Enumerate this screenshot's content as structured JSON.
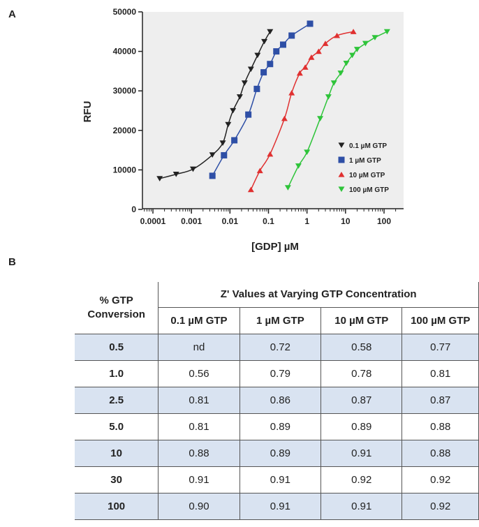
{
  "panels": {
    "a": "A",
    "b": "B"
  },
  "chart_data": {
    "type": "scatter",
    "xlabel": "[GDP] µM",
    "ylabel": "RFU",
    "x_scale": "log",
    "xlim": [
      0.0001,
      200
    ],
    "ylim": [
      0,
      50000
    ],
    "x_ticks": [
      "0.0001",
      "0.001",
      "0.01",
      "0.1",
      "1",
      "10",
      "100"
    ],
    "y_ticks": [
      "0",
      "10000",
      "20000",
      "30000",
      "40000",
      "50000"
    ],
    "grid": false,
    "legend_position": "lower-right",
    "colors": {
      "plot_bg": "#eeeeee"
    },
    "series": [
      {
        "name": "0.1 µM GTP",
        "color": "#222222",
        "marker": "triangle-down",
        "x": [
          0.00015,
          0.0004,
          0.0011,
          0.0035,
          0.0065,
          0.009,
          0.012,
          0.018,
          0.024,
          0.035,
          0.052,
          0.078,
          0.11
        ],
        "y": [
          7800,
          8900,
          10200,
          13800,
          16800,
          21500,
          25000,
          28500,
          32000,
          35500,
          39000,
          42500,
          45000
        ]
      },
      {
        "name": "1 µM GTP",
        "color": "#2e4fa6",
        "marker": "square",
        "x": [
          0.0035,
          0.007,
          0.013,
          0.03,
          0.05,
          0.075,
          0.11,
          0.16,
          0.24,
          0.4,
          1.2
        ],
        "y": [
          8500,
          13700,
          17500,
          24000,
          30500,
          34700,
          36800,
          40000,
          41700,
          44000,
          47000
        ]
      },
      {
        "name": "10 µM GTP",
        "color": "#e03030",
        "marker": "triangle-up",
        "x": [
          0.035,
          0.06,
          0.11,
          0.26,
          0.4,
          0.65,
          0.9,
          1.3,
          2.0,
          3.0,
          6.0,
          16.0
        ],
        "y": [
          5000,
          9800,
          14000,
          23000,
          29500,
          34500,
          36000,
          38500,
          40000,
          42000,
          44000,
          45000
        ]
      },
      {
        "name": "100 µM GTP",
        "color": "#2ec43a",
        "marker": "triangle-down",
        "x": [
          0.32,
          0.6,
          1.0,
          2.2,
          3.6,
          5.0,
          7.5,
          10.5,
          15.0,
          20.0,
          33.0,
          58.0,
          120.0
        ],
        "y": [
          5500,
          11000,
          14500,
          23000,
          28500,
          32000,
          34500,
          37000,
          39000,
          40500,
          42000,
          43500,
          45000
        ]
      }
    ]
  },
  "table": {
    "corner_label": "% GTP Conversion",
    "group_header": "Z' Values at Varying GTP Concentration",
    "columns": [
      "0.1 µM GTP",
      "1 µM GTP",
      "10 µM GTP",
      "100 µM GTP"
    ],
    "rows": [
      {
        "label": "0.5",
        "values": [
          "nd",
          "0.72",
          "0.58",
          "0.77"
        ]
      },
      {
        "label": "1.0",
        "values": [
          "0.56",
          "0.79",
          "0.78",
          "0.81"
        ]
      },
      {
        "label": "2.5",
        "values": [
          "0.81",
          "0.86",
          "0.87",
          "0.87"
        ]
      },
      {
        "label": "5.0",
        "values": [
          "0.81",
          "0.89",
          "0.89",
          "0.88"
        ]
      },
      {
        "label": "10",
        "values": [
          "0.88",
          "0.89",
          "0.91",
          "0.88"
        ]
      },
      {
        "label": "30",
        "values": [
          "0.91",
          "0.91",
          "0.92",
          "0.92"
        ]
      },
      {
        "label": "100",
        "values": [
          "0.90",
          "0.91",
          "0.91",
          "0.92"
        ]
      }
    ]
  }
}
